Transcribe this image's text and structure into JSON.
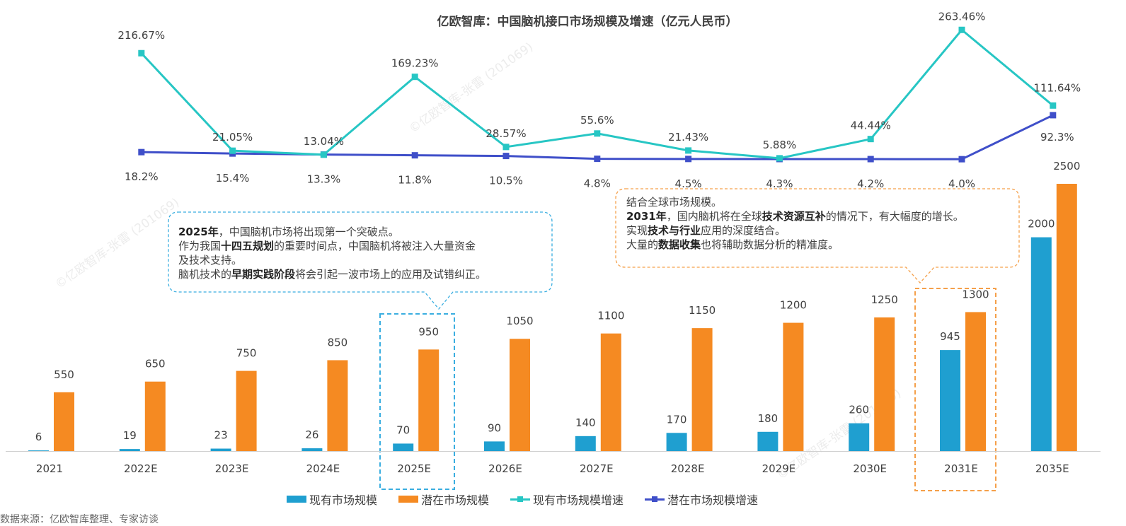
{
  "watermark": "©亿欧智库-张雷 (201069)",
  "source_note": "数据来源：亿欧智库整理、专家访谈",
  "colors": {
    "current": "#1f9fd0",
    "potential": "#f58a22",
    "current_growth": "#27c6c4",
    "potential_growth": "#3f4fc9"
  },
  "callouts": {
    "c2025": {
      "l1_bold": "2025年",
      "l1": "，中国脑机市场将出现第一个突破点。",
      "l2_pre": "作为我国",
      "l2_bold": "十四五规划",
      "l2": "的重要时间点，中国脑机将被注入大量资金",
      "l3": "及技术支持。",
      "l4_pre": "脑机技术的",
      "l4_bold": "早期实践阶段",
      "l4": "将会引起一波市场上的应用及试错纠正。"
    },
    "c2031": {
      "l1": "结合全球市场规模。",
      "l2_bold": "2031年",
      "l2_pre": "，国内脑机将在全球",
      "l2_bold2": "技术资源互补",
      "l2": "的情况下，有大幅度的增长。",
      "l3_pre": "实现",
      "l3_bold": "技术与行业",
      "l3": "应用的深度结合。",
      "l4_pre": "大量的",
      "l4_bold": "数据收集",
      "l4": "也将辅助数据分析的精准度。"
    }
  },
  "chart_data": {
    "type": "bar+line",
    "title": "亿欧智库：中国脑机接口市场规模及增速（亿元人民币）",
    "categories": [
      "2021",
      "2022E",
      "2023E",
      "2024E",
      "2025E",
      "2026E",
      "2027E",
      "2028E",
      "2029E",
      "2030E",
      "2031E",
      "2035E"
    ],
    "bar_series": [
      {
        "name": "现有市场规模",
        "values": [
          6,
          19,
          23,
          26,
          70,
          90,
          140,
          170,
          180,
          260,
          945,
          2000
        ]
      },
      {
        "name": "潜在市场规模",
        "values": [
          550,
          650,
          750,
          850,
          950,
          1050,
          1100,
          1150,
          1200,
          1250,
          1300,
          2500
        ]
      }
    ],
    "line_series": [
      {
        "name": "现有市场规模增速",
        "values": [
          null,
          "216.67%",
          "21.05%",
          "13.04%",
          "169.23%",
          "28.57%",
          "55.6%",
          "21.43%",
          "5.88%",
          "44.44%",
          "263.46%",
          "111.64%"
        ]
      },
      {
        "name": "潜在市场规模增速",
        "values": [
          null,
          "18.2%",
          "15.4%",
          "13.3%",
          "11.8%",
          "10.5%",
          "4.8%",
          "4.5%",
          "4.3%",
          "4.2%",
          "4.0%",
          "92.3%"
        ]
      }
    ],
    "highlighted_categories": [
      "2025E",
      "2031E"
    ],
    "legend": "bottom"
  }
}
